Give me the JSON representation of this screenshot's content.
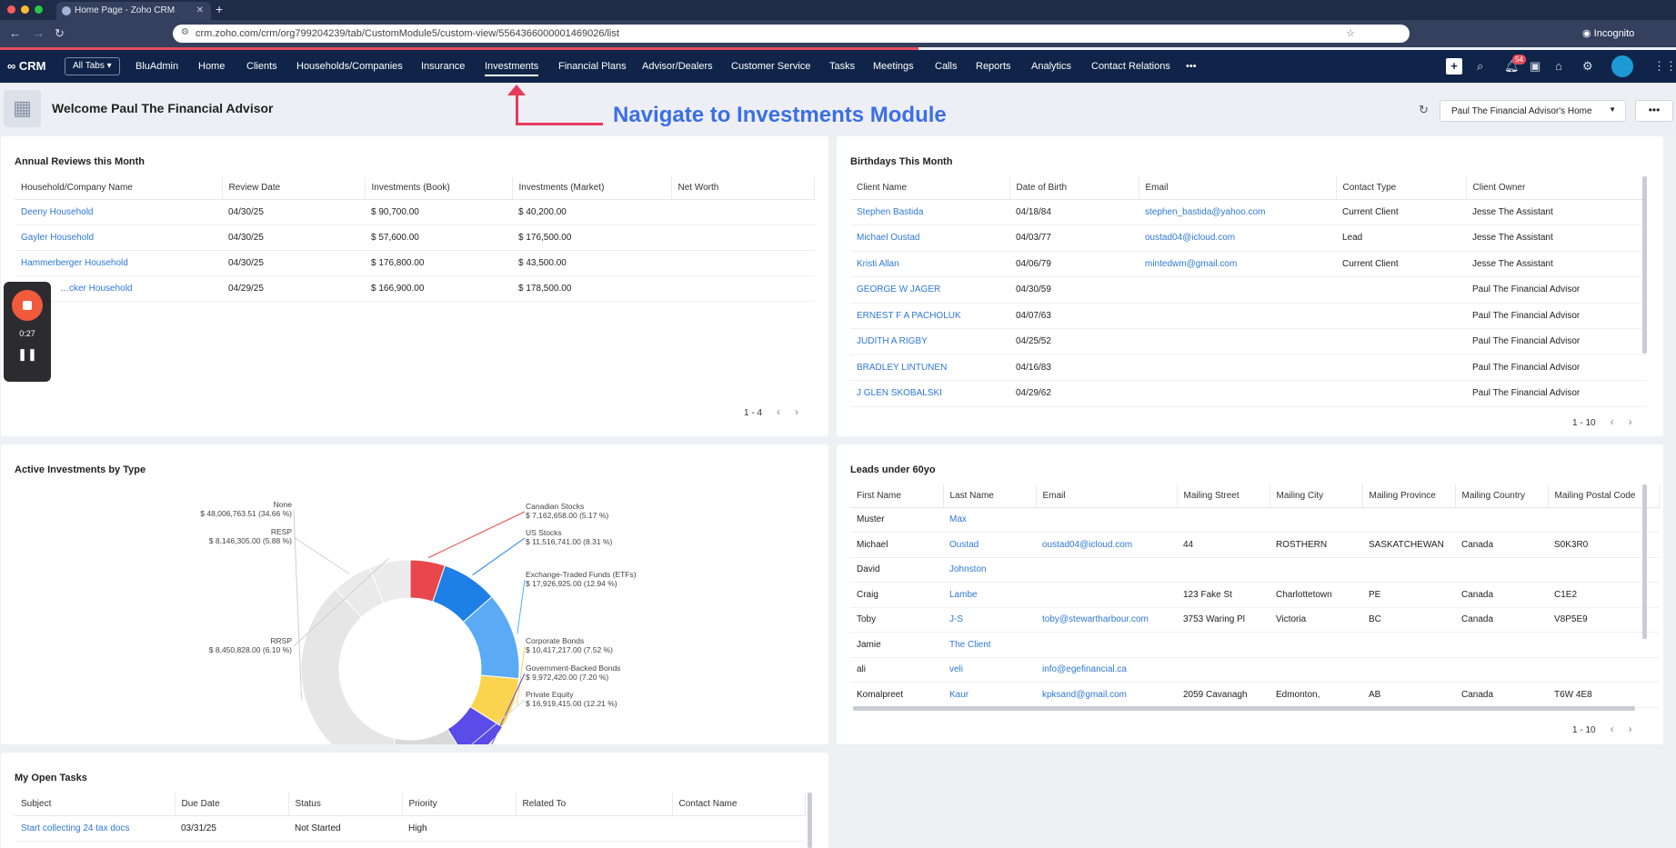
{
  "browser": {
    "tab_title": "Home Page - Zoho CRM",
    "url": "crm.zoho.com/crm/org799204239/tab/CustomModule5/custom-view/5564366000001469026/list",
    "incognito_label": "Incognito"
  },
  "nav": {
    "logo": "CRM",
    "all_tabs": "All Tabs ▾",
    "items": [
      "BluAdmin",
      "Home",
      "Clients",
      "Households/Companies",
      "Insurance",
      "Investments",
      "Financial Plans",
      "Advisor/Dealers",
      "Customer Service",
      "Tasks",
      "Meetings",
      "Calls",
      "Reports",
      "Analytics",
      "Contact Relations",
      "•••"
    ],
    "active_item": "Investments",
    "notification_count": "54"
  },
  "header": {
    "welcome": "Welcome Paul The Financial Advisor",
    "home_select": "Paul The Financial Advisor's Home",
    "more": "•••"
  },
  "annotation": {
    "text": "Navigate to Investments Module",
    "color": "#e63a5a"
  },
  "recorder": {
    "time": "0:27"
  },
  "annual_reviews": {
    "title": "Annual Reviews this Month",
    "columns": [
      "Household/Company Name",
      "Review Date",
      "Investments (Book)",
      "Investments (Market)",
      "Net Worth"
    ],
    "rows": [
      [
        "Deeny Household",
        "04/30/25",
        "$ 90,700.00",
        "$ 40,200.00",
        ""
      ],
      [
        "Gayler Household",
        "04/30/25",
        "$ 57,600.00",
        "$ 176,500.00",
        ""
      ],
      [
        "Hammerberger Household",
        "04/30/25",
        "$ 176,800.00",
        "$ 43,500.00",
        ""
      ],
      [
        "…cker Household",
        "04/29/25",
        "$ 166,900.00",
        "$ 178,500.00",
        ""
      ]
    ],
    "pager": "1 - 4"
  },
  "birthdays": {
    "title": "Birthdays This Month",
    "columns": [
      "Client Name",
      "Date of Birth",
      "Email",
      "Contact Type",
      "Client Owner"
    ],
    "rows": [
      [
        "Stephen Bastida",
        "04/18/84",
        "stephen_bastida@yahoo.com",
        "Current Client",
        "Jesse The Assistant"
      ],
      [
        "Michael Oustad",
        "04/03/77",
        "oustad04@icloud.com",
        "Lead",
        "Jesse The Assistant"
      ],
      [
        "Kristi Allan",
        "04/06/79",
        "mintedwm@gmail.com",
        "Current Client",
        "Jesse The Assistant"
      ],
      [
        "GEORGE W JAGER",
        "04/30/59",
        "",
        "",
        "Paul The Financial Advisor"
      ],
      [
        "ERNEST F A PACHOLUK",
        "04/07/63",
        "",
        "",
        "Paul The Financial Advisor"
      ],
      [
        "JUDITH A RIGBY",
        "04/25/52",
        "",
        "",
        "Paul The Financial Advisor"
      ],
      [
        "BRADLEY LINTUNEN",
        "04/16/83",
        "",
        "",
        "Paul The Financial Advisor"
      ],
      [
        "J GLEN SKOBALSKI",
        "04/29/62",
        "",
        "",
        "Paul The Financial Advisor"
      ]
    ],
    "pager": "1 - 10"
  },
  "active_investments": {
    "title": "Active Investments by Type"
  },
  "chart_data": {
    "type": "pie",
    "title": "Active Investments by Type",
    "donut": true,
    "slices": [
      {
        "name": "Canadian Stocks",
        "amount": "$ 7,162,658.00 (5.17 %)",
        "percent": 5.17,
        "color": "#e8474c"
      },
      {
        "name": "US Stocks",
        "amount": "$ 11,516,741.00 (8.31 %)",
        "percent": 8.31,
        "color": "#1e7fe6"
      },
      {
        "name": "Exchange-Traded Funds (ETFs)",
        "amount": "$ 17,926,925.00 (12.94 %)",
        "percent": 12.94,
        "color": "#5aaaf5"
      },
      {
        "name": "Corporate Bonds",
        "amount": "$ 10,417,217.00 (7.52 %)",
        "percent": 7.52,
        "color": "#fad44f"
      },
      {
        "name": "Government-Backed Bonds",
        "amount": "$ 9,972,420.00 (7.20 %)",
        "percent": 7.2,
        "color": "#5a4ce8"
      },
      {
        "name": "Private Equity",
        "amount": "$ 16,919,415.00 (12.21 %)",
        "percent": 12.21,
        "color": "#d9d9d9"
      },
      {
        "name": "None",
        "amount": "$ 48,006,763.51 (34.66 %)",
        "percent": 34.66,
        "color": "#e6e6e6"
      },
      {
        "name": "RESP",
        "amount": "$ 8,146,305.00 (5.88 %)",
        "percent": 5.88,
        "color": "#eaeaea"
      },
      {
        "name": "RRSP",
        "amount": "$ 8,450,828.00 (6.10 %)",
        "percent": 6.1,
        "color": "#ececec"
      }
    ]
  },
  "leads": {
    "title": "Leads under 60yo",
    "columns": [
      "First Name",
      "Last Name",
      "Email",
      "Mailing Street",
      "Mailing City",
      "Mailing Province",
      "Mailing Country",
      "Mailing Postal Code"
    ],
    "rows": [
      [
        "Muster",
        "Max",
        "",
        "",
        "",
        "",
        "",
        ""
      ],
      [
        "Michael",
        "Oustad",
        "oustad04@icloud.com",
        "44",
        "ROSTHERN",
        "SASKATCHEWAN",
        "Canada",
        "S0K3R0"
      ],
      [
        "David",
        "Johnston",
        "",
        "",
        "",
        "",
        "",
        ""
      ],
      [
        "Craig",
        "Lambe",
        "",
        "123 Fake St",
        "Charlottetown",
        "PE",
        "Canada",
        "C1E2"
      ],
      [
        "Toby",
        "J-S",
        "toby@stewartharbour.com",
        "3753 Waring Pl",
        "Victoria",
        "BC",
        "Canada",
        "V8P5E9"
      ],
      [
        "Jamie",
        "The Client",
        "",
        "",
        "",
        "",
        "",
        ""
      ],
      [
        "ali",
        "veli",
        "info@egefinancial.ca",
        "",
        "",
        "",
        "",
        ""
      ],
      [
        "Komalpreet",
        "Kaur",
        "kpksand@gmail.com",
        "2059 Cavanagh",
        "Edmonton,",
        "AB",
        "Canada",
        "T6W 4E8"
      ]
    ],
    "pager": "1 - 10"
  },
  "open_tasks": {
    "title": "My Open Tasks",
    "columns": [
      "Subject",
      "Due Date",
      "Status",
      "Priority",
      "Related To",
      "Contact Name"
    ],
    "rows": [
      [
        "Start collecting 24 tax docs",
        "03/31/25",
        "Not Started",
        "High",
        "",
        ""
      ]
    ]
  }
}
